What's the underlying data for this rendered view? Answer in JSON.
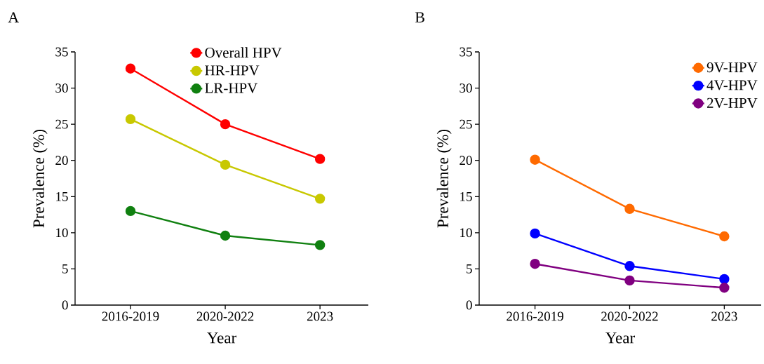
{
  "chart_data": [
    {
      "type": "line",
      "title": "A",
      "xlabel": "Year",
      "ylabel": "Prevalence (%)",
      "categories": [
        "2016-2019",
        "2020-2022",
        "2023"
      ],
      "ylim": [
        0,
        35
      ],
      "yticks": [
        0,
        5,
        10,
        15,
        20,
        25,
        30,
        35
      ],
      "marker": "circle",
      "line_style": "solid",
      "legend": "top",
      "series": [
        {
          "name": "Overall HPV",
          "color": "#ff0000",
          "values": [
            32.7,
            25.0,
            20.2
          ]
        },
        {
          "name": "HR-HPV",
          "color": "#c8c800",
          "values": [
            25.7,
            19.4,
            14.7
          ]
        },
        {
          "name": "LR-HPV",
          "color": "#108010",
          "values": [
            13.0,
            9.6,
            8.3
          ]
        }
      ]
    },
    {
      "type": "line",
      "title": "B",
      "xlabel": "Year",
      "ylabel": "Prevalence (%)",
      "categories": [
        "2016-2019",
        "2020-2022",
        "2023"
      ],
      "ylim": [
        0,
        35
      ],
      "yticks": [
        0,
        5,
        10,
        15,
        20,
        25,
        30,
        35
      ],
      "marker": "circle",
      "line_style": "solid",
      "legend": "top right",
      "series": [
        {
          "name": "9V-HPV",
          "color": "#ff6a00",
          "values": [
            20.1,
            13.3,
            9.5
          ]
        },
        {
          "name": "4V-HPV",
          "color": "#0000ff",
          "values": [
            9.9,
            5.4,
            3.6
          ]
        },
        {
          "name": "2V-HPV",
          "color": "#800080",
          "values": [
            5.7,
            3.4,
            2.4
          ]
        }
      ]
    }
  ]
}
